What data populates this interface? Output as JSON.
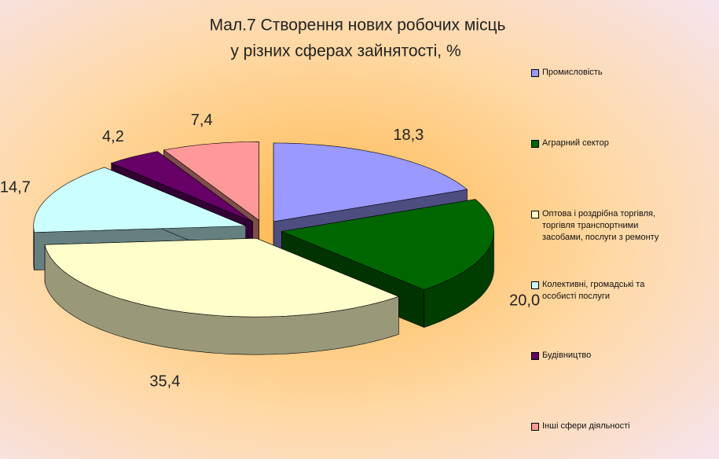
{
  "chart_data": {
    "type": "pie",
    "title": "Мал.7    Створення нових робочих місць",
    "subtitle": "у різних сферах зайнятості, %",
    "categories": [
      "Промисловість",
      "Аграрний сектор",
      "Оптова і роздрібна торгівля, торгівля транспортними засобами, послуги з ремонту",
      "Колективні, громадські та особисті послуги",
      "Будівництво",
      "Інші сфери діяльності"
    ],
    "values": [
      18.3,
      20.0,
      35.4,
      14.7,
      4.2,
      7.4
    ],
    "value_labels": [
      "18,3",
      "20,0",
      "35,4",
      "14,7",
      "4,2",
      "7,4"
    ],
    "colors": [
      "#9999ff",
      "#006600",
      "#ffffcc",
      "#ccffff",
      "#660066",
      "#ff9999"
    ],
    "legend": "right"
  }
}
